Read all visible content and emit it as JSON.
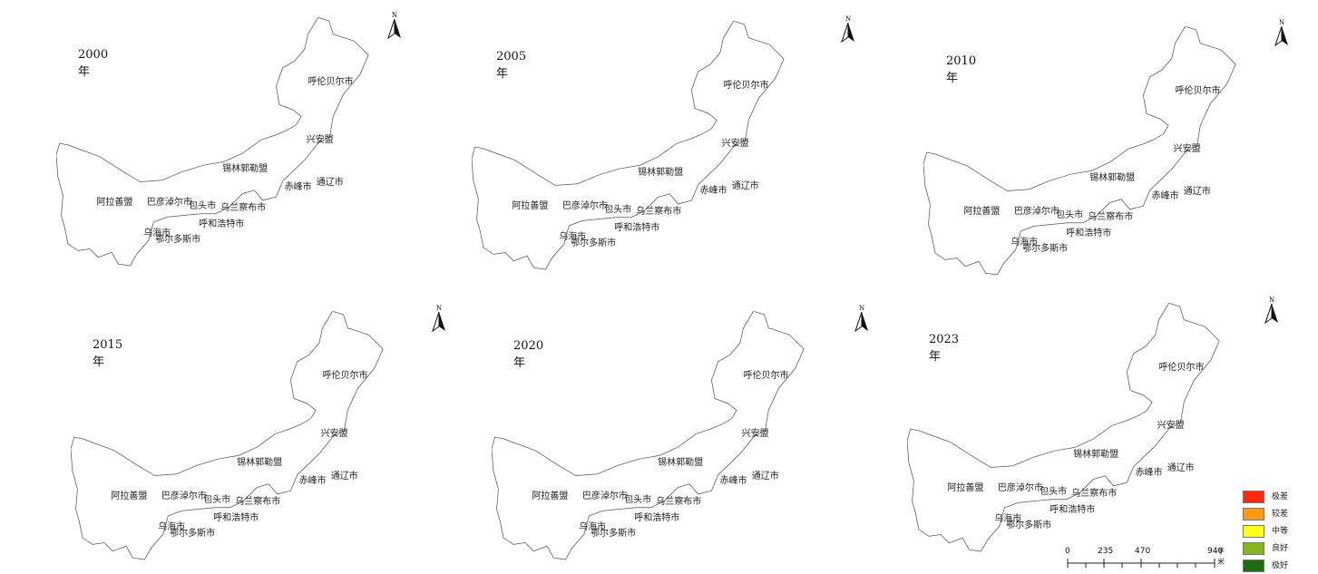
{
  "panels": [
    {
      "year": "2000年"
    },
    {
      "year": "2005年"
    },
    {
      "year": "2010年"
    },
    {
      "year": "2015年"
    },
    {
      "year": "2020年"
    },
    {
      "year": "2023年"
    }
  ],
  "north_label": "N",
  "cities": {
    "hulunbuir": "呼伦贝尔市",
    "xinganmeng": "兴安盟",
    "xilingol": "锡林郭勒盟",
    "chifeng": "赤峰市",
    "tongliao": "通辽市",
    "alxa": "阿拉善盟",
    "bayannur": "巴彦淖尔市",
    "baotou": "包头市",
    "ulanqab": "乌兰察布市",
    "hohhot": "呼和浩特市",
    "wuhai": "乌海市",
    "ordos": "鄂尔多斯市"
  },
  "legend": {
    "items": [
      {
        "label": "极差",
        "color": "#ff2a0a"
      },
      {
        "label": "较差",
        "color": "#ff9a12"
      },
      {
        "label": "中等",
        "color": "#ffff1c"
      },
      {
        "label": "良好",
        "color": "#83b81c"
      },
      {
        "label": "极好",
        "color": "#1f6e12"
      }
    ]
  },
  "scale_bar": {
    "ticks": [
      "0",
      "235",
      "470",
      "940"
    ],
    "unit": "千米"
  }
}
